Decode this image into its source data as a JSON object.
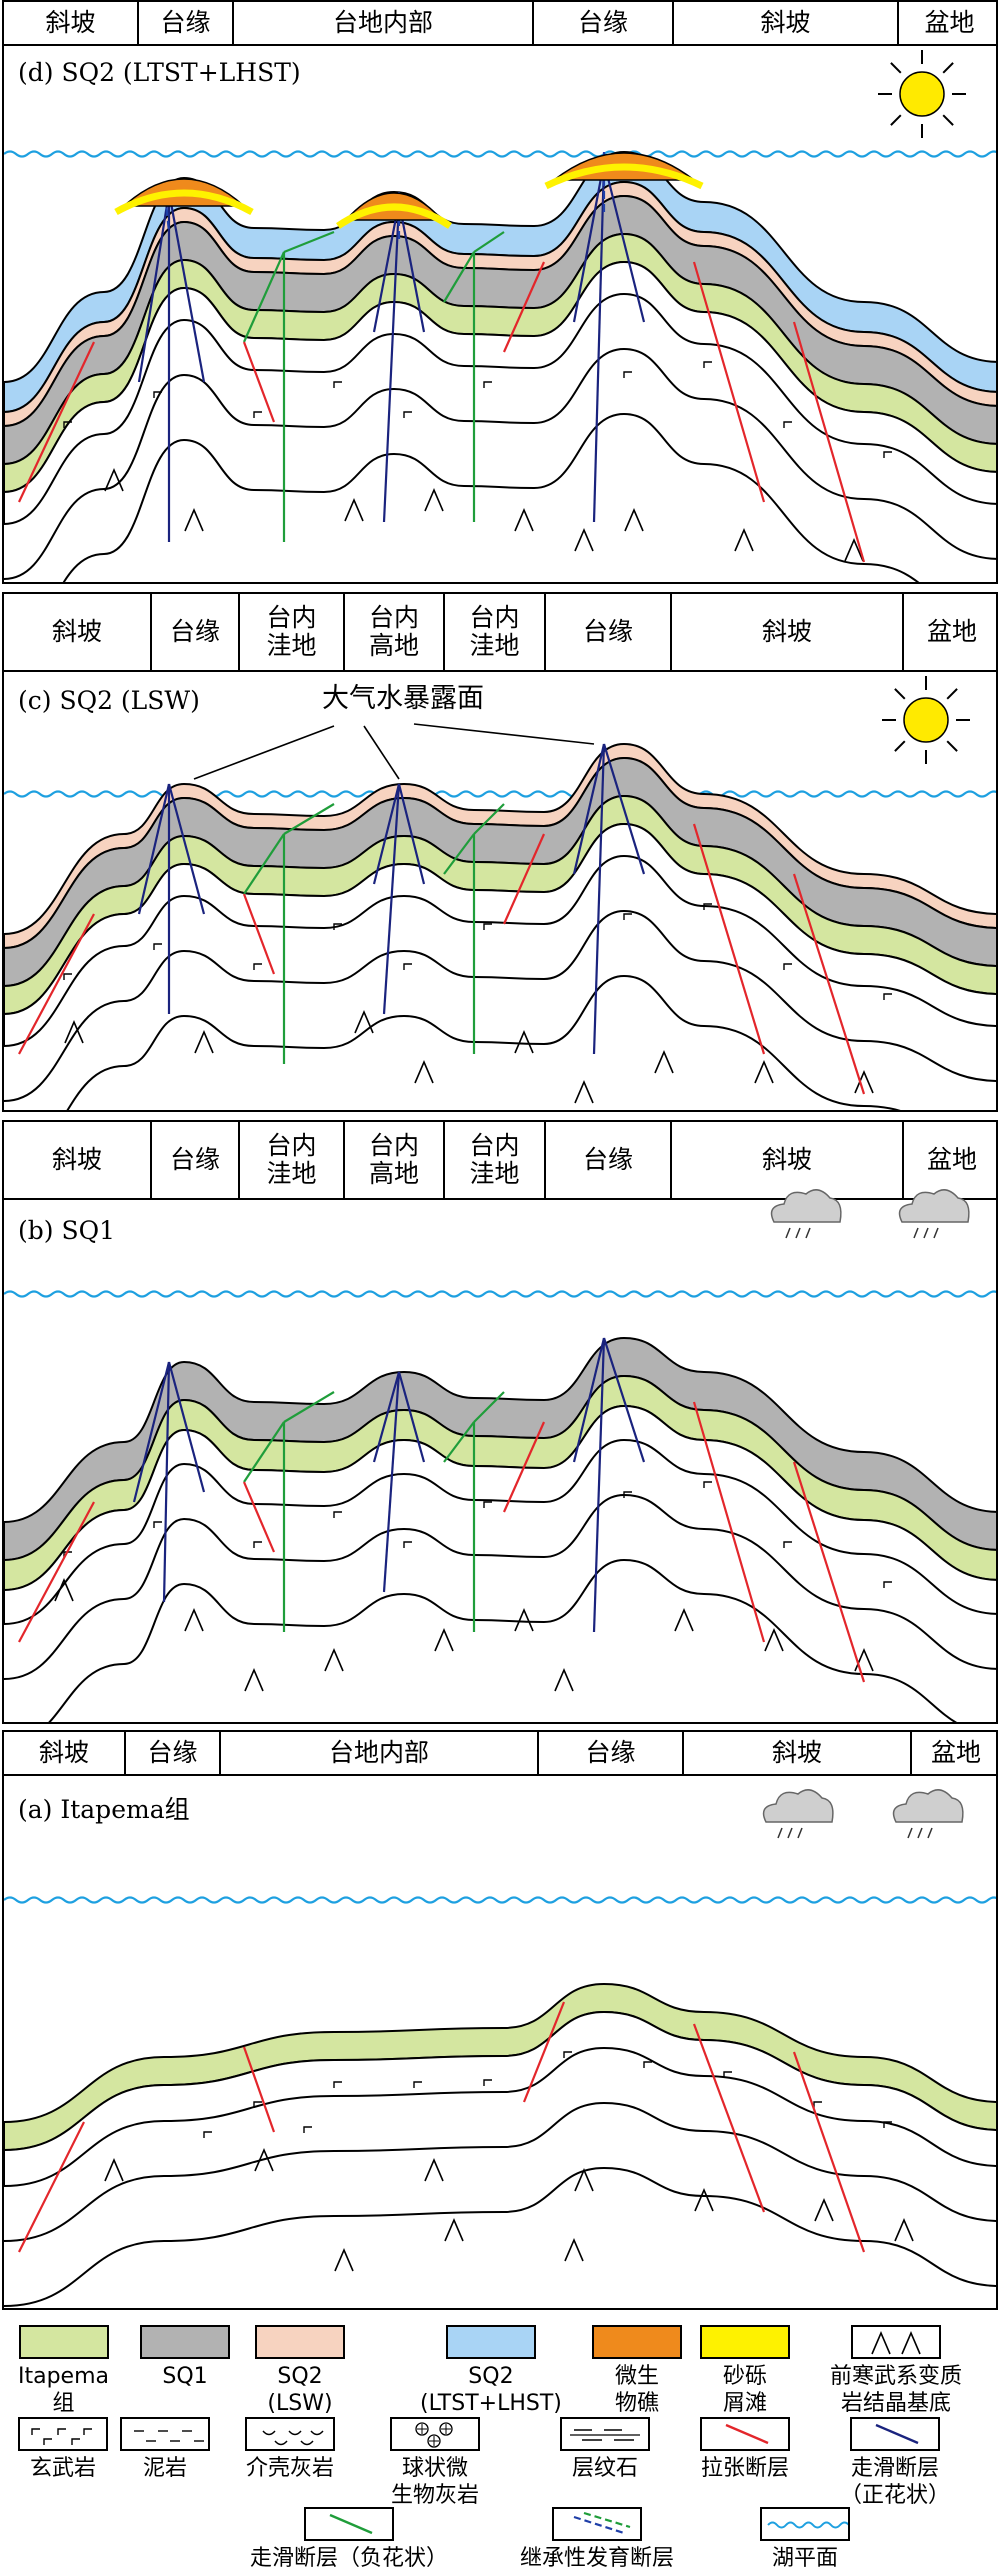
{
  "panels": [
    {
      "id": "d",
      "title": "(d) SQ2 (LTST+LHST)",
      "zones": [
        "斜坡",
        "台缘",
        "台地内部",
        "台缘",
        "斜坡",
        "盆地"
      ],
      "weather": "sun"
    },
    {
      "id": "c",
      "title": "(c) SQ2 (LSW)",
      "zones": [
        "斜坡",
        "台缘",
        "台内\n洼地",
        "台内\n高地",
        "台内\n洼地",
        "台缘",
        "斜坡",
        "盆地"
      ],
      "weather": "sun",
      "annotation": "大气水暴露面"
    },
    {
      "id": "b",
      "title": "(b) SQ1",
      "zones": [
        "斜坡",
        "台缘",
        "台内\n洼地",
        "台内\n高地",
        "台内\n洼地",
        "台缘",
        "斜坡",
        "盆地"
      ],
      "weather": "rain"
    },
    {
      "id": "a",
      "title": "(a) Itapema组",
      "zones": [
        "斜坡",
        "台缘",
        "台地内部",
        "台缘",
        "斜坡",
        "盆地"
      ],
      "weather": "rain"
    }
  ],
  "legend": [
    {
      "key": "itapema",
      "label": "Itapema\n组",
      "color": "#d4e6a0"
    },
    {
      "key": "sq1",
      "label": "SQ1",
      "color": "#b2b2b2"
    },
    {
      "key": "sq2_lsw",
      "label": "SQ2\n(LSW)",
      "color": "#f7d3c0"
    },
    {
      "key": "sq2_ltst",
      "label": "SQ2\n(LTST+LHST)",
      "color": "#a9d4f5"
    },
    {
      "key": "microbial_reef",
      "label": "微生\n物礁",
      "color": "#ef8a1c"
    },
    {
      "key": "gravel_shoal",
      "label": "砂砾\n屑滩",
      "color": "#fef200"
    },
    {
      "key": "basement",
      "label": "前寒武系变质\n岩结晶基底"
    },
    {
      "key": "basalt",
      "label": "玄武岩"
    },
    {
      "key": "mudstone",
      "label": "泥岩"
    },
    {
      "key": "shell_limestone",
      "label": "介壳灰岩"
    },
    {
      "key": "spherulite",
      "label": "球状微\n生物灰岩"
    },
    {
      "key": "laminite",
      "label": "层纹石"
    },
    {
      "key": "extensional_fault",
      "label": "拉张断层",
      "color": "#e3262b"
    },
    {
      "key": "strike_slip_positive",
      "label": "走滑断层\n（正花状）",
      "color": "#1a237e"
    },
    {
      "key": "strike_slip_negative",
      "label": "走滑断层（负花状）",
      "color": "#1f9d3a"
    },
    {
      "key": "inherited_fault",
      "label": "继承性发育断层",
      "color": "#1f3fa8"
    },
    {
      "key": "lake_level",
      "label": "湖平面",
      "color": "#1ea0e0"
    }
  ]
}
